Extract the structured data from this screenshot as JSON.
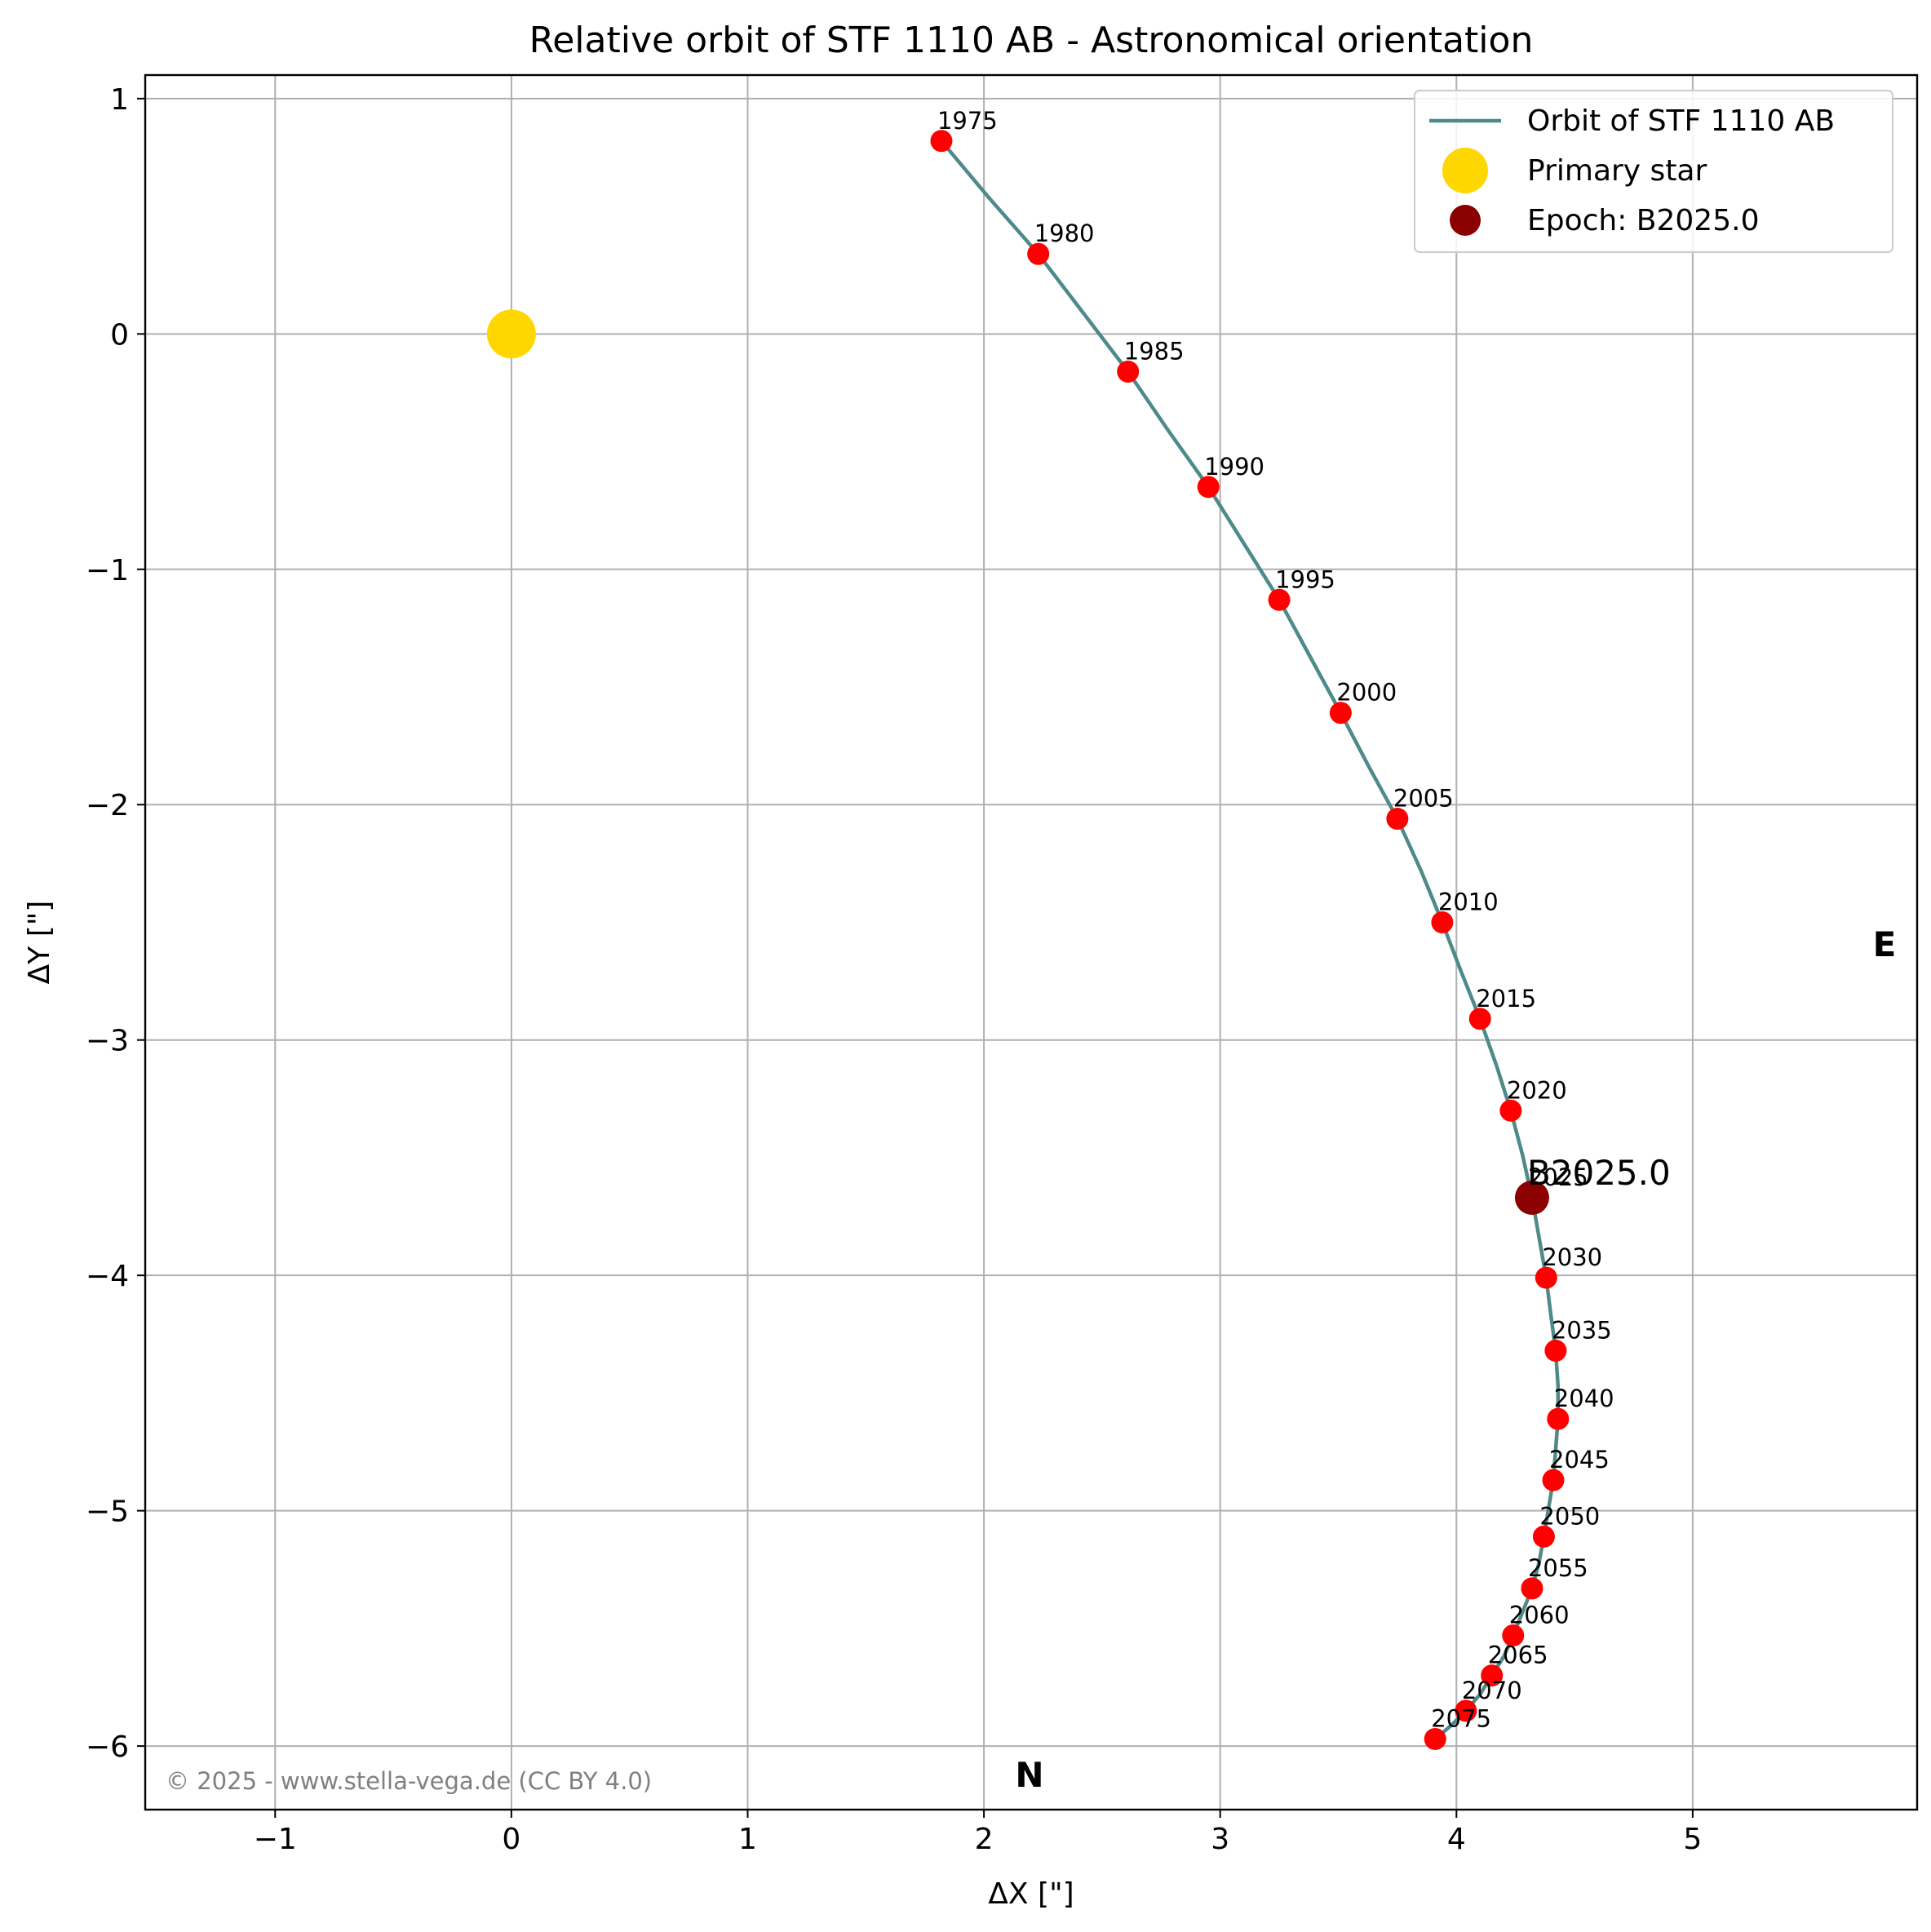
{
  "chart_data": {
    "type": "line",
    "title": "Relative orbit of STF 1110 AB - Astronomical orientation",
    "xlabel": "ΔX [\"]",
    "ylabel": "ΔY [\"]",
    "xlim": [
      -1.55,
      5.95
    ],
    "ylim": [
      -6.27,
      1.1
    ],
    "grid": true,
    "legend_position": "top-right",
    "x_ticks": [
      -1,
      0,
      1,
      2,
      3,
      4,
      5
    ],
    "x_tick_labels": [
      "−1",
      "0",
      "1",
      "2",
      "3",
      "4",
      "5"
    ],
    "y_ticks": [
      1,
      0,
      -1,
      -2,
      -3,
      -4,
      -5,
      -6
    ],
    "y_tick_labels": [
      "1",
      "0",
      "−1",
      "−2",
      "−3",
      "−4",
      "−5",
      "−6"
    ],
    "orbit": {
      "name": "Orbit of STF 1110 AB",
      "color": "#4f8a8b",
      "x": [
        1.82,
        2.02,
        2.23,
        2.42,
        2.61,
        2.78,
        2.95,
        3.1,
        3.25,
        3.38,
        3.51,
        3.63,
        3.75,
        3.85,
        3.94,
        4.02,
        4.1,
        4.17,
        4.23,
        4.28,
        4.32,
        4.35,
        4.38,
        4.4,
        4.42,
        4.43,
        4.43,
        4.42,
        4.41,
        4.39,
        4.37,
        4.35,
        4.32,
        4.28,
        4.24,
        4.2,
        4.15,
        4.1,
        4.04,
        3.98,
        3.91
      ],
      "y": [
        0.82,
        0.58,
        0.34,
        0.09,
        -0.16,
        -0.41,
        -0.65,
        -0.89,
        -1.13,
        -1.37,
        -1.61,
        -1.84,
        -2.06,
        -2.28,
        -2.5,
        -2.71,
        -2.91,
        -3.11,
        -3.3,
        -3.49,
        -3.67,
        -3.84,
        -4.01,
        -4.17,
        -4.32,
        -4.47,
        -4.61,
        -4.74,
        -4.87,
        -4.99,
        -5.11,
        -5.22,
        -5.33,
        -5.43,
        -5.53,
        -5.62,
        -5.7,
        -5.78,
        -5.85,
        -5.91,
        -5.97
      ]
    },
    "epochs": {
      "color": "#ff0000",
      "labels": [
        "1975",
        "1980",
        "1985",
        "1990",
        "1995",
        "2000",
        "2005",
        "2010",
        "2015",
        "2020",
        "2025",
        "2030",
        "2035",
        "2040",
        "2045",
        "2050",
        "2055",
        "2060",
        "2065",
        "2070",
        "2075"
      ],
      "x": [
        1.82,
        2.23,
        2.61,
        2.95,
        3.25,
        3.51,
        3.75,
        3.94,
        4.1,
        4.23,
        4.32,
        4.38,
        4.42,
        4.43,
        4.41,
        4.37,
        4.32,
        4.24,
        4.15,
        4.04,
        3.91
      ],
      "y": [
        0.82,
        0.34,
        -0.16,
        -0.65,
        -1.13,
        -1.61,
        -2.06,
        -2.5,
        -2.91,
        -3.3,
        -3.67,
        -4.01,
        -4.32,
        -4.61,
        -4.87,
        -5.11,
        -5.33,
        -5.53,
        -5.7,
        -5.85,
        -5.97
      ]
    },
    "primary_star": {
      "name": "Primary star",
      "x": 0,
      "y": 0,
      "color": "#ffd700"
    },
    "current_epoch": {
      "name": "Epoch: B2025.0",
      "label": "B2025.0",
      "x": 4.32,
      "y": -3.67,
      "color": "#8b0000"
    },
    "direction_labels": {
      "east": "E",
      "north": "N"
    },
    "copyright": "© 2025 - www.stella-vega.de (CC BY 4.0)"
  }
}
